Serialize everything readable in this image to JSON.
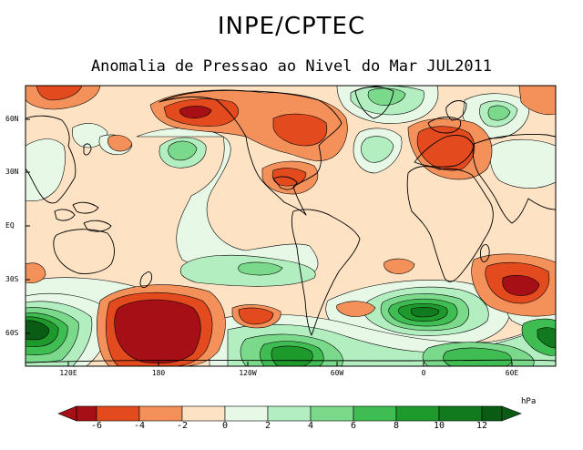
{
  "header": {
    "title": "INPE/CPTEC",
    "subtitle": "Anomalia de Pressao ao Nivel do Mar JUL2011"
  },
  "map": {
    "lat_labels": [
      "60N",
      "30N",
      "EQ",
      "30S",
      "60S"
    ],
    "lon_labels": [
      "120E",
      "180",
      "120W",
      "60W",
      "0",
      "60E"
    ],
    "colors": {
      "neg6": "#a50f15",
      "neg4": "#e34a1e",
      "neg2": "#f4915a",
      "neg0": "#fde2c4",
      "pos0": "#e7f8e7",
      "pos2": "#b2eec0",
      "pos4": "#7ad98a",
      "pos6": "#3fbd52",
      "pos8": "#1e9a2d",
      "pos10": "#117a1e",
      "pos12": "#0a5c14"
    }
  },
  "colorbar": {
    "unit": "hPa",
    "labels": [
      "-6",
      "-4",
      "-2",
      "0",
      "2",
      "4",
      "6",
      "8",
      "10",
      "12"
    ]
  }
}
